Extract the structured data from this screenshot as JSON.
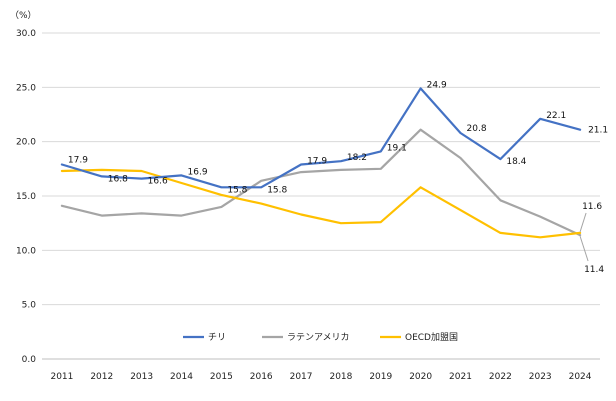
{
  "chart_data": {
    "type": "line",
    "unit_label": "（%）",
    "x": [
      "2011",
      "2012",
      "2013",
      "2014",
      "2015",
      "2016",
      "2017",
      "2018",
      "2019",
      "2020",
      "2021",
      "2022",
      "2023",
      "2024"
    ],
    "ylim": [
      0,
      30
    ],
    "ytick_labels": [
      "0.0",
      "5.0",
      "10.0",
      "15.0",
      "20.0",
      "25.0",
      "30.0"
    ],
    "grid": "horizontal",
    "legend_position": "bottom",
    "series": [
      {
        "name": "チリ",
        "color": "#4472c4",
        "values": [
          17.9,
          16.8,
          16.6,
          16.9,
          15.8,
          15.8,
          17.9,
          18.2,
          19.1,
          24.9,
          20.8,
          18.4,
          22.1,
          21.1
        ],
        "data_labels": [
          "17.9",
          "16.8",
          "16.6",
          "16.9",
          "15.8",
          "15.8",
          "17.9",
          "18.2",
          "19.1",
          "24.9",
          "20.8",
          "18.4",
          "22.1",
          "21.1"
        ]
      },
      {
        "name": "ラテンアメリカ",
        "color": "#a5a5a5",
        "values": [
          14.1,
          13.2,
          13.4,
          13.2,
          14.0,
          16.4,
          17.2,
          17.4,
          17.5,
          21.1,
          18.5,
          14.6,
          13.1,
          11.4
        ],
        "end_label": "11.4"
      },
      {
        "name": "OECD加盟国",
        "color": "#ffc000",
        "values": [
          17.3,
          17.4,
          17.3,
          16.2,
          15.1,
          14.3,
          13.3,
          12.5,
          12.6,
          15.8,
          13.7,
          11.6,
          11.2,
          11.6
        ],
        "end_label": "11.6"
      }
    ]
  }
}
